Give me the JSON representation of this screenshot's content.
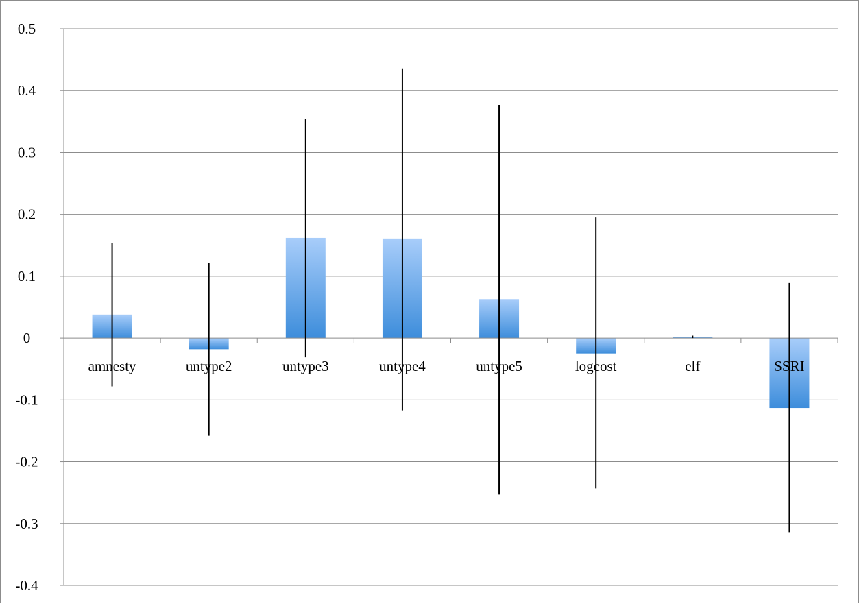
{
  "chart_data": {
    "type": "bar",
    "title": "",
    "xlabel": "",
    "ylabel": "",
    "ylim": [
      -0.4,
      0.5
    ],
    "yticks": [
      0.5,
      0.4,
      0.3,
      0.2,
      0.1,
      0,
      -0.1,
      -0.2,
      -0.3,
      -0.4
    ],
    "ytick_labels": [
      "0.5",
      "0.4",
      "0.3",
      "0.2",
      "0.1",
      "0",
      "-0.1",
      "-0.2",
      "-0.3",
      "-0.4"
    ],
    "grid": true,
    "legend": "none",
    "categories": [
      "amnesty",
      "untype2",
      "untype3",
      "untype4",
      "untype5",
      "logcost",
      "elf",
      "SSRI"
    ],
    "values": [
      0.038,
      -0.018,
      0.162,
      0.161,
      0.063,
      -0.025,
      0.002,
      -0.113
    ],
    "error_bars": {
      "low": [
        -0.078,
        -0.158,
        -0.031,
        -0.117,
        -0.253,
        -0.243,
        0.0,
        -0.314
      ],
      "high": [
        0.154,
        0.122,
        0.354,
        0.436,
        0.377,
        0.195,
        0.004,
        0.089
      ]
    },
    "colors": {
      "bar_top": "#a8cdfa",
      "bar_bottom": "#3d8ddb",
      "grid": "#8c8c8c",
      "error_bar": "#000000"
    }
  }
}
